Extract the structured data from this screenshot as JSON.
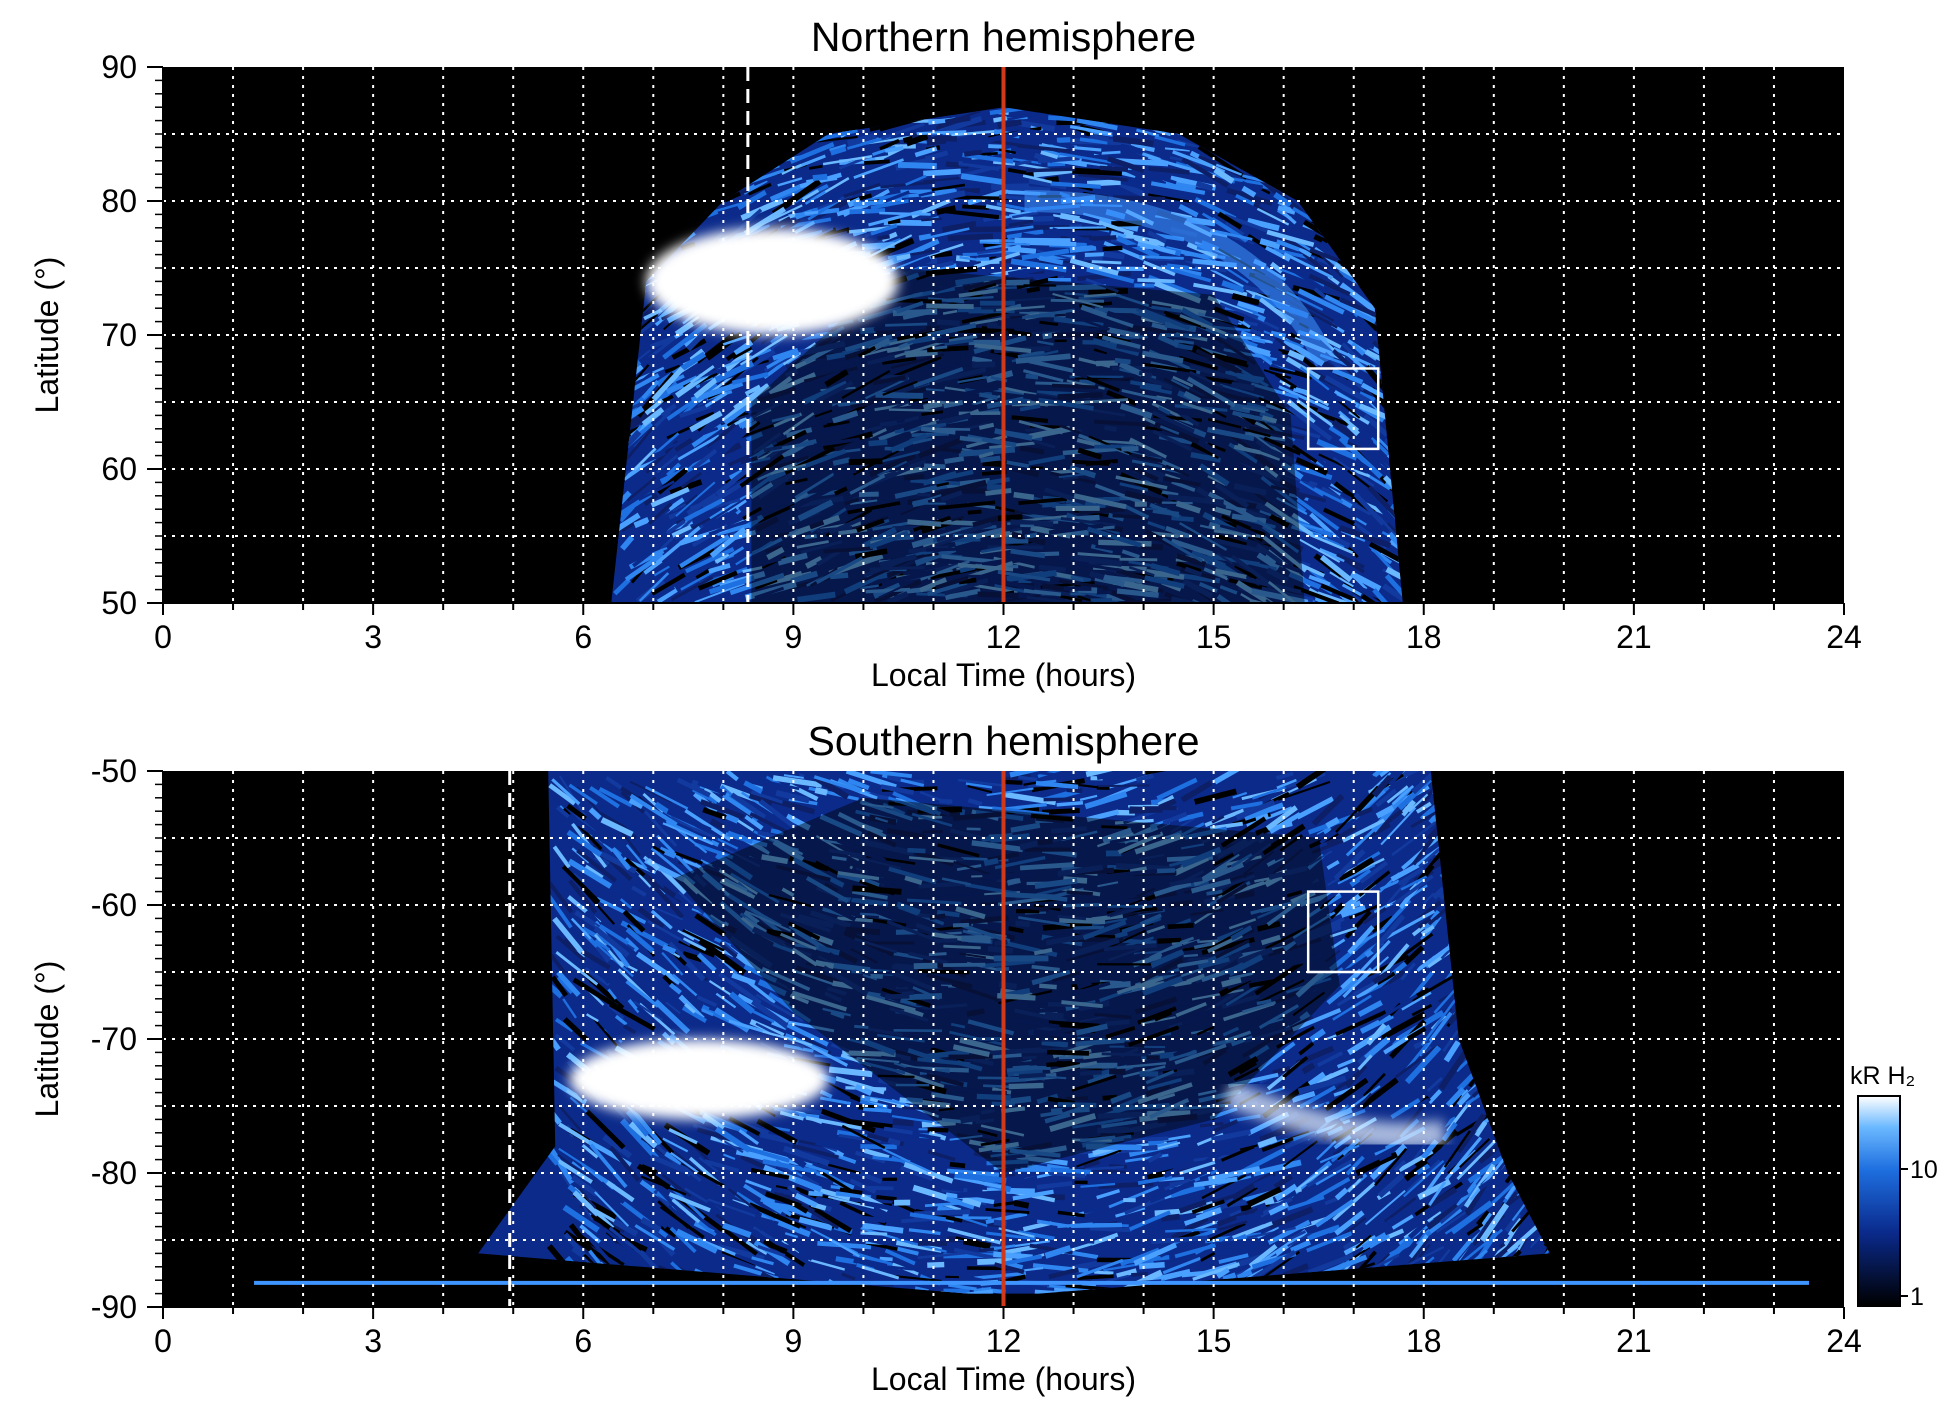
{
  "chart_data": [
    {
      "type": "heatmap",
      "title": "Northern hemisphere",
      "xlabel": "Local Time (hours)",
      "ylabel": "Latitude (°)",
      "xlim": [
        0,
        24
      ],
      "ylim": [
        50,
        90
      ],
      "x_ticks": [
        "0",
        "3",
        "6",
        "9",
        "12",
        "15",
        "18",
        "21",
        "24"
      ],
      "y_ticks": [
        "50",
        "60",
        "70",
        "80",
        "90"
      ],
      "grid": true,
      "colormap": [
        "#000000",
        "#0a2a8c",
        "#1e6fe0",
        "#6ab8ff",
        "#ffffff"
      ],
      "coverage": {
        "lt_start": 6.4,
        "lt_end": 17.7,
        "lat_top_at_noon": 87
      },
      "bright_region": {
        "lt_start": 6.9,
        "lt_end": 10.5,
        "lat_min": 70,
        "lat_max": 78
      },
      "noon_line": {
        "lt": 12.0,
        "color": "#d03a1a"
      },
      "dashed_line": {
        "lt": 8.35,
        "color": "#ffffff"
      },
      "box": {
        "lt_min": 16.35,
        "lt_max": 17.35,
        "lat_min": 61.5,
        "lat_max": 67.5
      }
    },
    {
      "type": "heatmap",
      "title": "Southern hemisphere",
      "xlabel": "Local Time (hours)",
      "ylabel": "Latitude (°)",
      "xlim": [
        0,
        24
      ],
      "ylim": [
        -90,
        -50
      ],
      "x_ticks": [
        "0",
        "3",
        "6",
        "9",
        "12",
        "15",
        "18",
        "21",
        "24"
      ],
      "y_ticks": [
        "-50",
        "-60",
        "-70",
        "-80",
        "-90"
      ],
      "grid": true,
      "colormap": [
        "#000000",
        "#0a2a8c",
        "#1e6fe0",
        "#6ab8ff",
        "#ffffff"
      ],
      "coverage": {
        "lt_start": 5.5,
        "lt_end": 19.8,
        "lat_bottom_at_noon": -89
      },
      "bright_region": {
        "lt_start": 5.8,
        "lt_end": 9.5,
        "lat_min": -76,
        "lat_max": -70
      },
      "noon_line": {
        "lt": 12.0,
        "color": "#d03a1a"
      },
      "dashed_line": {
        "lt": 4.95,
        "color": "#ffffff"
      },
      "box": {
        "lt_min": 16.35,
        "lt_max": 17.35,
        "lat_min": -65,
        "lat_max": -59
      }
    }
  ],
  "colorbar": {
    "label": "kR H₂",
    "tick_labels": [
      "1",
      "10"
    ],
    "scale": "log",
    "range": [
      1,
      30
    ]
  }
}
